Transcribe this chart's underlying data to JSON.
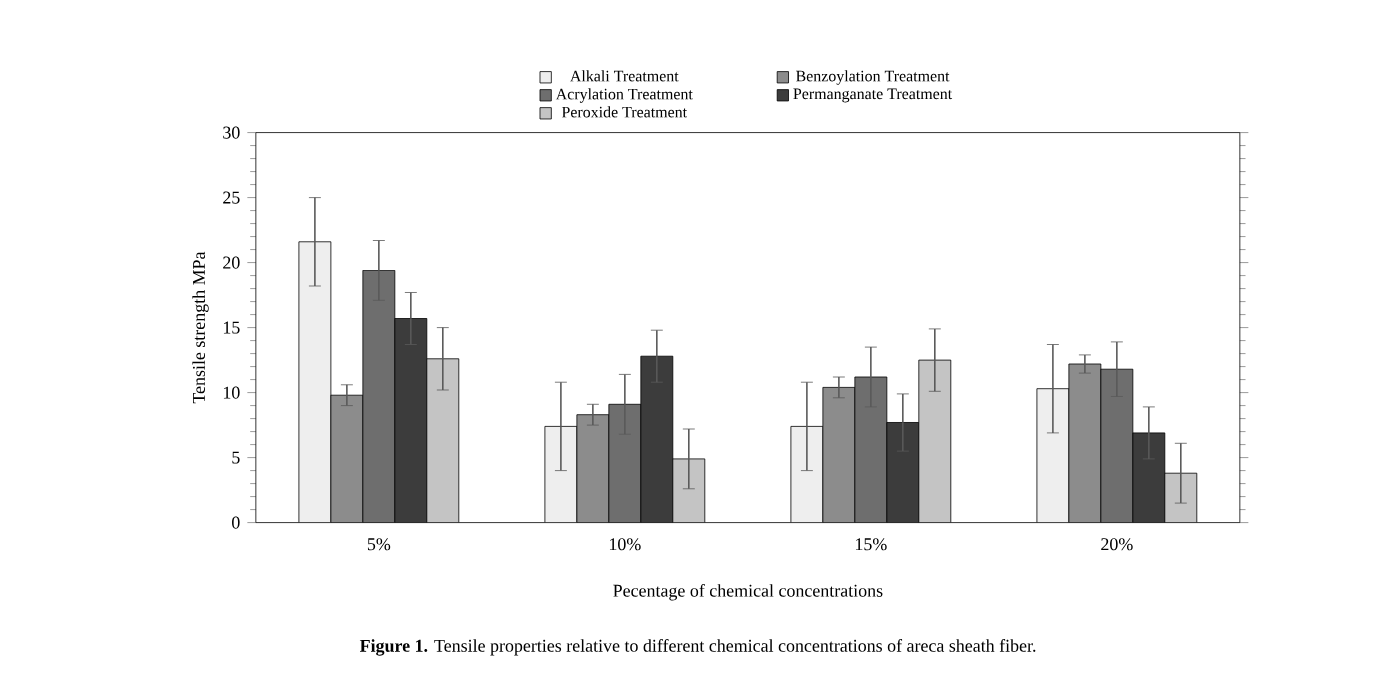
{
  "chart_data": {
    "type": "bar",
    "xlabel": "Pecentage of chemical concentrations",
    "ylabel": "Tensile strength MPa",
    "categories": [
      "5%",
      "10%",
      "15%",
      "20%"
    ],
    "series": [
      {
        "name": "Alkali Treatment",
        "color": "#eeeeee",
        "values": [
          21.6,
          7.4,
          7.4,
          10.3
        ],
        "errors": [
          3.4,
          3.4,
          3.4,
          3.4
        ]
      },
      {
        "name": "Benzoylation Treatment",
        "color": "#8c8c8c",
        "values": [
          9.8,
          8.3,
          10.4,
          12.2
        ],
        "errors": [
          0.8,
          0.8,
          0.8,
          0.7
        ]
      },
      {
        "name": "Acrylation Treatment",
        "color": "#6e6e6e",
        "values": [
          19.4,
          9.1,
          11.2,
          11.8
        ],
        "errors": [
          2.3,
          2.3,
          2.3,
          2.1
        ]
      },
      {
        "name": "Permanganate Treatment",
        "color": "#3c3c3c",
        "values": [
          15.7,
          12.8,
          7.7,
          6.9
        ],
        "errors": [
          2.0,
          2.0,
          2.2,
          2.0
        ]
      },
      {
        "name": "Peroxide Treatment",
        "color": "#c4c4c4",
        "values": [
          12.6,
          4.9,
          12.5,
          3.8
        ],
        "errors": [
          2.4,
          2.3,
          2.4,
          2.3
        ]
      }
    ],
    "ylim": [
      0,
      30
    ],
    "yticks": [
      0,
      5,
      10,
      15,
      20,
      25,
      30
    ],
    "grid": false,
    "legend": "top",
    "annotations": [
      "**Figure 1.** Tensile properties relative to different chemical concentrations of areca sheath fiber."
    ]
  }
}
